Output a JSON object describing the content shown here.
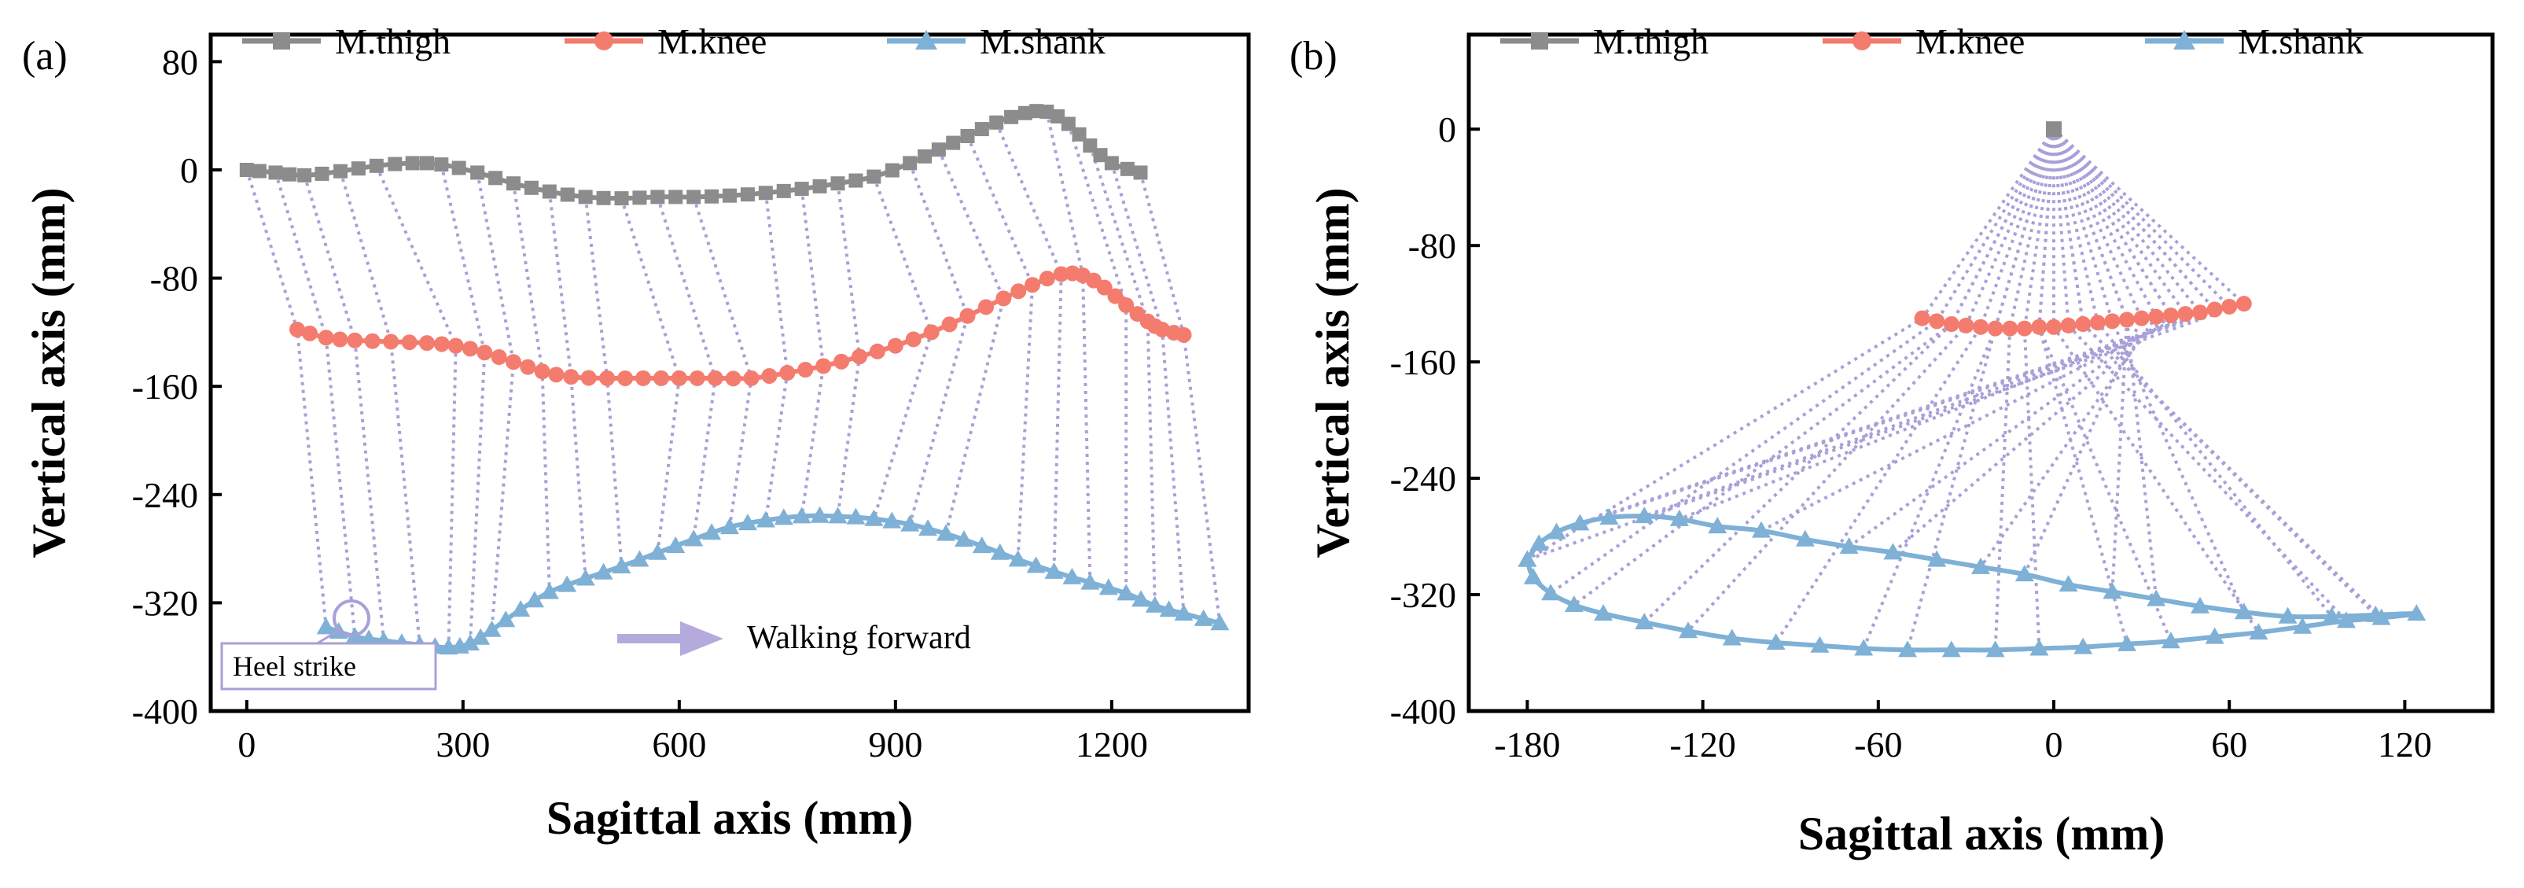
{
  "colors": {
    "thigh": "#8c8c8c",
    "knee": "#f47c6e",
    "shank": "#7fb0d6",
    "link": "#a8a0d8",
    "arrow": "#b4aadc",
    "frame": "#000000"
  },
  "chart_data": [
    {
      "type": "line",
      "panel_label": "(a)",
      "title": "",
      "xlabel": "Sagittal axis (mm)",
      "ylabel": "Vertical axis (mm)",
      "xlim": [
        -50,
        1390
      ],
      "ylim": [
        -400,
        100
      ],
      "xticks": [
        0,
        300,
        600,
        900,
        1200
      ],
      "xtick_labels": [
        "0",
        "300",
        "600",
        "900",
        "1200"
      ],
      "yticks": [
        80,
        0,
        -80,
        -160,
        -240,
        -320,
        -400
      ],
      "ytick_labels": [
        "80",
        "0",
        "-80",
        "-160",
        "-240",
        "-320",
        "-400"
      ],
      "legend": [
        "M.thigh",
        "M.knee",
        "M.shank"
      ],
      "legend_position": "top",
      "annotations": {
        "walking": "Walking forward",
        "heel": "Heel strike"
      },
      "series": [
        {
          "name": "M.thigh",
          "marker": "square",
          "x": [
            0,
            40,
            80,
            130,
            180,
            230,
            270,
            320,
            370,
            420,
            470,
            520,
            570,
            620,
            670,
            720,
            770,
            820,
            870,
            920,
            960,
            1000,
            1040,
            1080,
            1110,
            1140,
            1170,
            1200,
            1240
          ],
          "y": [
            0,
            -2,
            -4,
            -1,
            3,
            5,
            4,
            -2,
            -10,
            -16,
            -20,
            -21,
            -20,
            -20,
            -19,
            -17,
            -14,
            -10,
            -5,
            5,
            15,
            25,
            35,
            42,
            43,
            34,
            18,
            5,
            -2
          ]
        },
        {
          "name": "M.knee",
          "marker": "circle",
          "x": [
            70,
            110,
            150,
            200,
            250,
            290,
            330,
            370,
            410,
            450,
            500,
            550,
            600,
            650,
            700,
            750,
            800,
            850,
            900,
            950,
            1000,
            1050,
            1090,
            1130,
            1160,
            1190,
            1220,
            1250,
            1270,
            1300
          ],
          "y": [
            -118,
            -124,
            -126,
            -127,
            -128,
            -130,
            -135,
            -142,
            -149,
            -153,
            -154,
            -154,
            -154,
            -154,
            -154,
            -150,
            -145,
            -138,
            -130,
            -120,
            -108,
            -95,
            -85,
            -77,
            -78,
            -87,
            -100,
            -112,
            -118,
            -122
          ]
        },
        {
          "name": "M.shank",
          "marker": "triangle",
          "x": [
            110,
            150,
            190,
            240,
            280,
            310,
            340,
            380,
            420,
            470,
            520,
            570,
            620,
            670,
            720,
            770,
            820,
            870,
            920,
            970,
            1020,
            1070,
            1120,
            1170,
            1220,
            1260,
            1300,
            1350
          ],
          "y": [
            -338,
            -345,
            -348,
            -351,
            -353,
            -350,
            -340,
            -325,
            -312,
            -302,
            -293,
            -283,
            -273,
            -264,
            -259,
            -256,
            -256,
            -258,
            -262,
            -269,
            -278,
            -288,
            -297,
            -305,
            -313,
            -322,
            -328,
            -335
          ]
        }
      ]
    },
    {
      "type": "line",
      "panel_label": "(b)",
      "title": "",
      "xlabel": "Sagittal axis (mm)",
      "ylabel": "Vertical axis (mm)",
      "xlim": [
        -200,
        150
      ],
      "ylim": [
        -400,
        65
      ],
      "xticks": [
        -180,
        -120,
        -60,
        0,
        60,
        120
      ],
      "xtick_labels": [
        "-180",
        "-120",
        "-60",
        "0",
        "60",
        "120"
      ],
      "yticks": [
        0,
        -80,
        -160,
        -240,
        -320,
        -400
      ],
      "ytick_labels": [
        "0",
        "-80",
        "-160",
        "-240",
        "-320",
        "-400"
      ],
      "legend": [
        "M.thigh",
        "M.knee",
        "M.shank"
      ],
      "legend_position": "top",
      "series": [
        {
          "name": "M.thigh",
          "marker": "square",
          "x": [
            0
          ],
          "y": [
            0
          ]
        },
        {
          "name": "M.knee",
          "marker": "circle",
          "x": [
            -45,
            -40,
            -35,
            -30,
            -25,
            -20,
            -15,
            -10,
            -5,
            0,
            5,
            10,
            15,
            20,
            25,
            30,
            35,
            40,
            45,
            50,
            55,
            60,
            65
          ],
          "y": [
            -130,
            -132,
            -134,
            -135,
            -136,
            -137,
            -137,
            -137,
            -136,
            -136,
            -135,
            -134,
            -133,
            -132,
            -131,
            -130,
            -129,
            -128,
            -127,
            -126,
            -124,
            -122,
            -120
          ]
        },
        {
          "name": "M.shank",
          "marker": "triangle",
          "x": [
            -180,
            -178,
            -172,
            -164,
            -154,
            -140,
            -125,
            -110,
            -95,
            -80,
            -65,
            -50,
            -35,
            -20,
            -5,
            10,
            25,
            40,
            55,
            70,
            85,
            100,
            112,
            124,
            110,
            95,
            80,
            65,
            50,
            35,
            20,
            5,
            -10,
            -25,
            -40,
            -55,
            -70,
            -85,
            -100,
            -115,
            -128,
            -140,
            -152,
            -162,
            -170,
            -176,
            -180
          ],
          "y": [
            -296,
            -308,
            -319,
            -327,
            -333,
            -339,
            -345,
            -350,
            -353,
            -355,
            -357,
            -358,
            -358,
            -358,
            -357,
            -356,
            -354,
            -352,
            -349,
            -346,
            -342,
            -338,
            -336,
            -333,
            -334,
            -335,
            -335,
            -332,
            -328,
            -323,
            -318,
            -313,
            -306,
            -301,
            -296,
            -291,
            -287,
            -282,
            -276,
            -273,
            -268,
            -266,
            -267,
            -271,
            -277,
            -285,
            -296
          ]
        }
      ]
    }
  ]
}
